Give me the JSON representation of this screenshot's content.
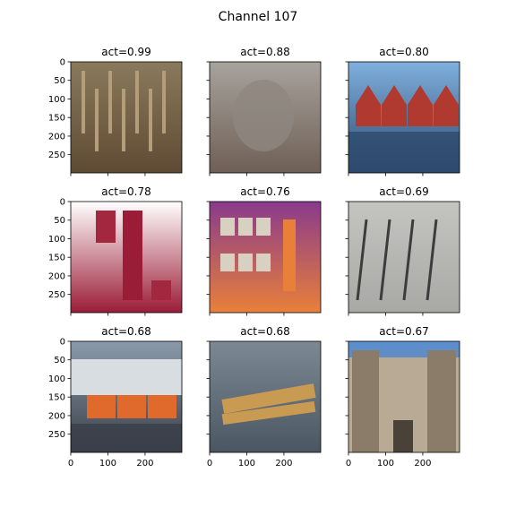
{
  "figure": {
    "title": "Channel 107"
  },
  "chart_data": {
    "type": "image-grid",
    "title": "Channel 107",
    "rows": 3,
    "cols": 3,
    "xlim": [
      0,
      299
    ],
    "ylim": [
      299,
      0
    ],
    "yticks": [
      0,
      50,
      100,
      150,
      200,
      250
    ],
    "xticks": [
      0,
      100,
      200
    ],
    "panels": [
      {
        "title": "act=0.99",
        "act": 0.99,
        "subject": "hammers",
        "colors": [
          "#8a7a5c",
          "#b39d7a",
          "#5f4a33"
        ]
      },
      {
        "title": "act=0.88",
        "act": 0.88,
        "subject": "gravel-stone",
        "colors": [
          "#a7a39d",
          "#8f8780",
          "#6f5f55"
        ]
      },
      {
        "title": "act=0.80",
        "act": 0.8,
        "subject": "red-boathouses",
        "colors": [
          "#7fb0de",
          "#b03a30",
          "#2e4a6e"
        ]
      },
      {
        "title": "act=0.78",
        "act": 0.78,
        "subject": "lip-products",
        "colors": [
          "#ffffff",
          "#a3273f",
          "#9b1c36"
        ]
      },
      {
        "title": "act=0.76",
        "act": 0.76,
        "subject": "craft-mat",
        "colors": [
          "#8a3a8c",
          "#d8d0c0",
          "#e8803a"
        ]
      },
      {
        "title": "act=0.69",
        "act": 0.69,
        "subject": "tripods",
        "colors": [
          "#c4c4c0",
          "#3c3c3c",
          "#a8a8a4"
        ]
      },
      {
        "title": "act=0.68",
        "act": 0.68,
        "subject": "orange-lifeboats",
        "colors": [
          "#8a9aaa",
          "#e06a2c",
          "#3a3f48"
        ]
      },
      {
        "title": "act=0.68",
        "act": 0.68,
        "subject": "folding-ruler",
        "colors": [
          "#7c8894",
          "#c99a52",
          "#4a5660"
        ]
      },
      {
        "title": "act=0.67",
        "act": 0.67,
        "subject": "castle-gate",
        "colors": [
          "#5b8fd0",
          "#b8aa94",
          "#8a7c68"
        ]
      }
    ]
  }
}
